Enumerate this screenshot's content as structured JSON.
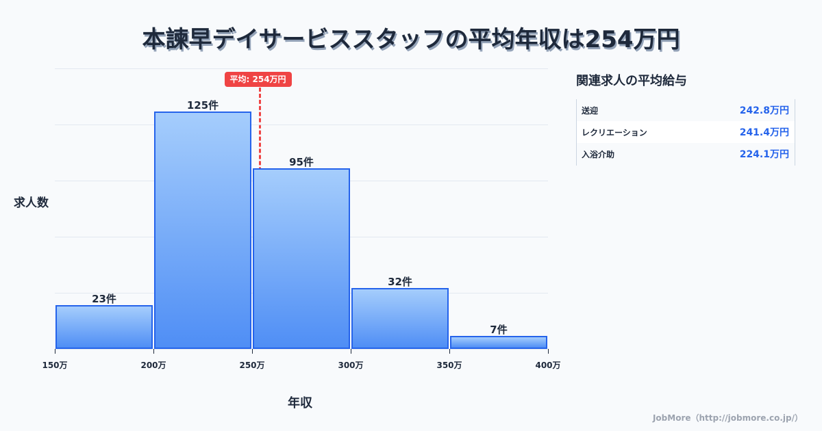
{
  "title": "本諫早デイサービススタッフの平均年収は254万円",
  "chart_data": {
    "type": "bar",
    "subtype": "histogram",
    "title": "本諫早デイサービススタッフの平均年収は254万円",
    "xlabel": "年収",
    "ylabel": "求人数",
    "bin_edges": [
      150,
      200,
      250,
      300,
      350,
      400
    ],
    "x_tick_labels": [
      "150万",
      "200万",
      "250万",
      "300万",
      "350万",
      "400万"
    ],
    "categories": [
      "150万-200万",
      "200万-250万",
      "250万-300万",
      "300万-350万",
      "350万-400万"
    ],
    "values": [
      23,
      125,
      95,
      32,
      7
    ],
    "value_labels": [
      "23件",
      "125件",
      "95件",
      "32件",
      "7件"
    ],
    "ylim": [
      0,
      147.5
    ],
    "grid": true,
    "mean_line": {
      "value": 254,
      "label": "平均: 254万円",
      "color": "#ef4444"
    },
    "bar_color": "#60a5fa",
    "bar_edge_color": "#2563eb"
  },
  "sidebar": {
    "title": "関連求人の平均給与",
    "rows": [
      {
        "label": "送迎",
        "value": "242.8万円"
      },
      {
        "label": "レクリエーション",
        "value": "241.4万円"
      },
      {
        "label": "入浴介助",
        "value": "224.1万円"
      }
    ]
  },
  "footer": "JobMore（http://jobmore.co.jp/）"
}
